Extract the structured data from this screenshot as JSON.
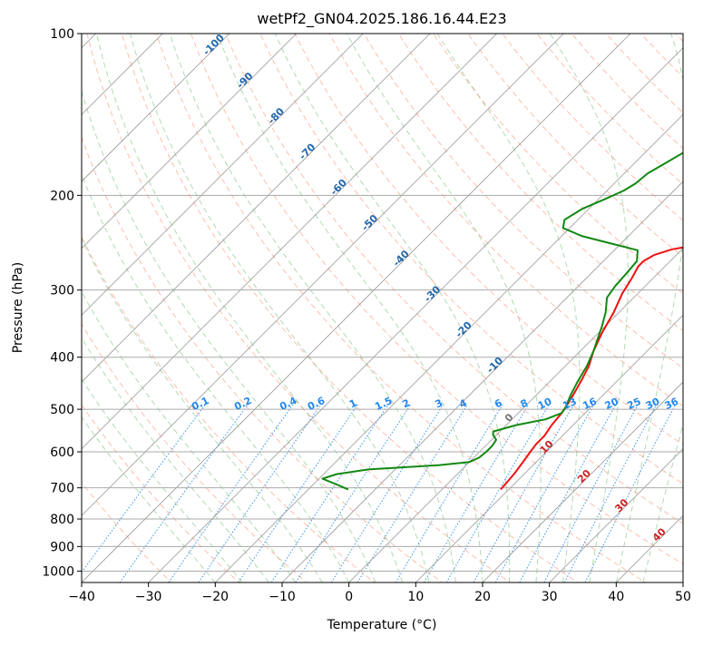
{
  "chart_data": {
    "type": "line",
    "subtype": "skew-T log-P diagram",
    "title": "wetPf2_GN04.2025.186.16.44.E23",
    "xlabel": "Temperature (°C)",
    "ylabel": "Pressure (hPa)",
    "xlim": [
      -40,
      50
    ],
    "ylim": [
      1050,
      100
    ],
    "y_scale": "log",
    "x_ticks": [
      "−40",
      "−30",
      "−20",
      "−10",
      "0",
      "10",
      "20",
      "30",
      "40",
      "50"
    ],
    "y_ticks": [
      "100",
      "200",
      "300",
      "400",
      "500",
      "600",
      "700",
      "800",
      "900",
      "1000"
    ],
    "y_tick_values": [
      100,
      200,
      300,
      400,
      500,
      600,
      700,
      800,
      900,
      1000
    ],
    "grid": true,
    "series": [
      {
        "color": "#ee1111",
        "points": [
          [
            8.8,
            705
          ],
          [
            8.5,
            660
          ],
          [
            8,
            625
          ],
          [
            7.6,
            600
          ],
          [
            7.3,
            580
          ],
          [
            7.3,
            560
          ],
          [
            6.8,
            535
          ],
          [
            6.5,
            510
          ],
          [
            6.2,
            495
          ],
          [
            5.5,
            470
          ],
          [
            4.5,
            440
          ],
          [
            3.5,
            415
          ],
          [
            2,
            390
          ],
          [
            0.5,
            360
          ],
          [
            -0.8,
            330
          ],
          [
            -2.3,
            305
          ],
          [
            -3.2,
            285
          ],
          [
            -4,
            271
          ],
          [
            -4,
            265
          ],
          [
            -3.3,
            258
          ],
          [
            -1.5,
            252
          ],
          [
            2.5,
            246
          ],
          [
            10,
            238
          ],
          [
            15,
            228
          ],
          [
            19,
            218
          ],
          [
            23,
            205
          ],
          [
            27,
            190
          ],
          [
            29,
            178
          ],
          [
            31,
            168
          ],
          [
            33,
            158
          ],
          [
            35,
            148
          ],
          [
            37,
            141
          ],
          [
            39,
            134
          ],
          [
            42,
            126
          ],
          [
            45,
            118
          ],
          [
            48,
            110
          ],
          [
            51,
            103
          ],
          [
            53,
            100
          ]
        ]
      },
      {
        "color": "#118811",
        "points": [
          [
            -14,
            705
          ],
          [
            -16.5,
            690
          ],
          [
            -19.5,
            673
          ],
          [
            -18,
            660
          ],
          [
            -14,
            647
          ],
          [
            -4,
            635
          ],
          [
            0,
            627
          ],
          [
            0.8,
            615
          ],
          [
            1,
            600
          ],
          [
            1,
            585
          ],
          [
            0.7,
            570
          ],
          [
            -0.5,
            558
          ],
          [
            -1,
            550
          ],
          [
            1.5,
            535
          ],
          [
            5,
            522
          ],
          [
            6.5,
            508
          ],
          [
            6.2,
            495
          ],
          [
            5.2,
            472
          ],
          [
            4.2,
            445
          ],
          [
            3.2,
            415
          ],
          [
            2,
            390
          ],
          [
            -0.5,
            350
          ],
          [
            -2,
            330
          ],
          [
            -4,
            310
          ],
          [
            -4.5,
            295
          ],
          [
            -4.7,
            280
          ],
          [
            -5,
            265
          ],
          [
            -6.5,
            253
          ],
          [
            -12,
            245
          ],
          [
            -17,
            238
          ],
          [
            -21,
            230
          ],
          [
            -22,
            222
          ],
          [
            -21,
            212
          ],
          [
            -19,
            203
          ],
          [
            -17.5,
            196
          ],
          [
            -16.8,
            190
          ],
          [
            -16.5,
            182
          ],
          [
            -15.5,
            175
          ],
          [
            -14,
            165
          ],
          [
            -13,
            155
          ],
          [
            -12,
            148
          ],
          [
            -10,
            140
          ],
          [
            -8,
            130
          ],
          [
            -6,
            120
          ],
          [
            -4,
            110
          ],
          [
            -2,
            100
          ]
        ]
      }
    ],
    "isotherm_labels": [
      "-100",
      "-90",
      "-80",
      "-70",
      "-60",
      "-50",
      "-40",
      "-30",
      "-20",
      "-10",
      "0",
      "10",
      "20",
      "30",
      "40"
    ],
    "isotherm_label_values": [
      -100,
      -90,
      -80,
      -70,
      -60,
      -50,
      -40,
      -30,
      -20,
      -10,
      0,
      10,
      20,
      30,
      40
    ],
    "mixing_ratio_labels": [
      "0.1",
      "0.2",
      "0.4",
      "0.6",
      "1",
      "1.5",
      "2",
      "3",
      "4",
      "6",
      "8",
      "10",
      "13",
      "16",
      "20",
      "25",
      "30",
      "36"
    ],
    "mixing_ratio_values": [
      0.1,
      0.2,
      0.4,
      0.6,
      1,
      1.5,
      2,
      3,
      4,
      6,
      8,
      10,
      13,
      16,
      20,
      25,
      30,
      36
    ],
    "colors": {
      "isotherm_label_cold": "#2266aa",
      "isotherm_label_zero": "#777777",
      "isotherm_label_warm": "#cc2222",
      "mixing_label": "#2288ee",
      "dry_adiabat": "#ff8866",
      "moist_adiabat": "#55aa55",
      "skewed_isotherm": "#999999",
      "grid": "#aaaaaa",
      "reference_curve": "#ccaa88"
    }
  }
}
